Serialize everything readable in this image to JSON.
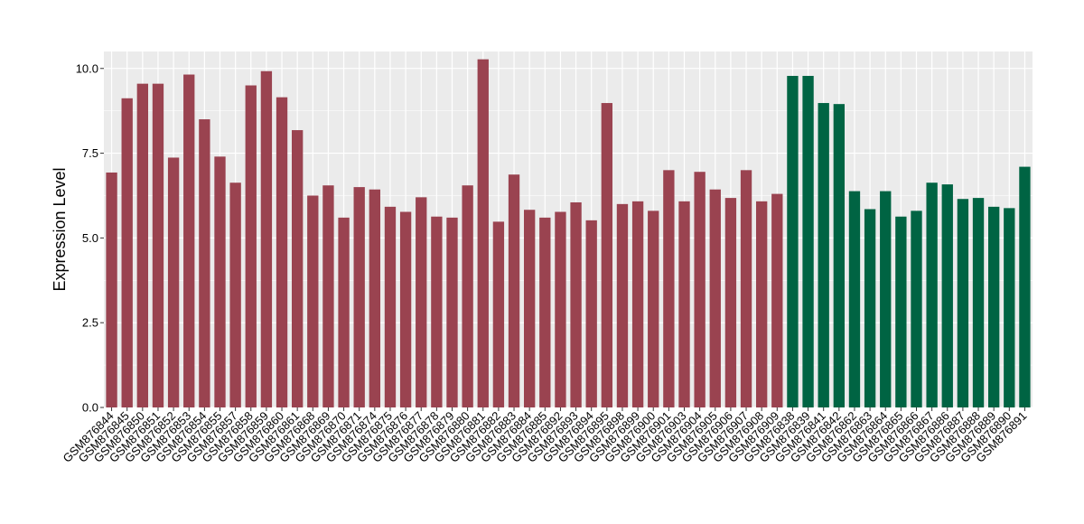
{
  "chart_data": {
    "type": "bar",
    "title": "",
    "xlabel": "",
    "ylabel": "Expression Level",
    "ylim": [
      0,
      10.5
    ],
    "yticks": [
      0,
      2.5,
      5,
      7.5,
      10
    ],
    "ytick_labels": [
      "0.0",
      "2.5",
      "5.0",
      "7.5",
      "10.0"
    ],
    "grid": true,
    "panel_background": "#ebebeb",
    "grid_color": "#ffffff",
    "legend": "none",
    "group_colors": [
      "#9a4350",
      "#006443"
    ],
    "categories": [
      "GSM876844",
      "GSM876845",
      "GSM876850",
      "GSM876851",
      "GSM876852",
      "GSM876853",
      "GSM876854",
      "GSM876855",
      "GSM876857",
      "GSM876858",
      "GSM876859",
      "GSM876860",
      "GSM876861",
      "GSM876868",
      "GSM876869",
      "GSM876870",
      "GSM876871",
      "GSM876874",
      "GSM876875",
      "GSM876876",
      "GSM876877",
      "GSM876878",
      "GSM876879",
      "GSM876880",
      "GSM876881",
      "GSM876882",
      "GSM876883",
      "GSM876884",
      "GSM876885",
      "GSM876892",
      "GSM876893",
      "GSM876894",
      "GSM876895",
      "GSM876898",
      "GSM876899",
      "GSM876900",
      "GSM876901",
      "GSM876903",
      "GSM876904",
      "GSM876905",
      "GSM876906",
      "GSM876907",
      "GSM876908",
      "GSM876909",
      "GSM876838",
      "GSM876839",
      "GSM876841",
      "GSM876842",
      "GSM876862",
      "GSM876863",
      "GSM876864",
      "GSM876865",
      "GSM876866",
      "GSM876867",
      "GSM876886",
      "GSM876887",
      "GSM876888",
      "GSM876889",
      "GSM876890",
      "GSM876891"
    ],
    "values": [
      6.93,
      9.12,
      9.55,
      9.55,
      7.37,
      9.82,
      8.5,
      7.4,
      6.63,
      9.5,
      9.92,
      9.15,
      8.18,
      6.25,
      6.55,
      5.6,
      6.5,
      6.43,
      5.92,
      5.77,
      6.2,
      5.63,
      5.6,
      6.55,
      10.27,
      5.48,
      6.87,
      5.83,
      5.6,
      5.77,
      6.05,
      5.52,
      8.98,
      6.0,
      6.08,
      5.8,
      7.0,
      6.08,
      6.95,
      6.43,
      6.18,
      7.0,
      6.08,
      6.3,
      9.78,
      9.78,
      8.98,
      8.95,
      6.38,
      5.85,
      6.38,
      5.63,
      5.8,
      6.63,
      6.58,
      6.15,
      6.18,
      5.92,
      5.88,
      7.1
    ],
    "groups": [
      0,
      0,
      0,
      0,
      0,
      0,
      0,
      0,
      0,
      0,
      0,
      0,
      0,
      0,
      0,
      0,
      0,
      0,
      0,
      0,
      0,
      0,
      0,
      0,
      0,
      0,
      0,
      0,
      0,
      0,
      0,
      0,
      0,
      0,
      0,
      0,
      0,
      0,
      0,
      0,
      0,
      0,
      0,
      0,
      1,
      1,
      1,
      1,
      1,
      1,
      1,
      1,
      1,
      1,
      1,
      1,
      1,
      1,
      1,
      1
    ]
  }
}
